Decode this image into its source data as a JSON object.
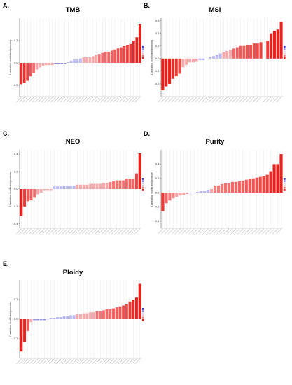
{
  "colors": {
    "strong_red": "#e8201c",
    "light_red": "#f7a8aa",
    "light_blue": "#b9b7f2",
    "mid_blue": "#8f8ce6",
    "grid": "#e6e6e6"
  },
  "chart_data": [
    {
      "panel": "A.",
      "title": "TMB",
      "type": "bar",
      "ylabel": "Correlation coefficient(pearson)",
      "ylim": [
        -0.3,
        0.4
      ],
      "yticks": [
        -0.2,
        0.0,
        0.2
      ],
      "values": [
        -0.19,
        -0.18,
        -0.16,
        -0.12,
        -0.09,
        -0.06,
        -0.04,
        -0.03,
        -0.02,
        -0.02,
        -0.02,
        -0.01,
        -0.01,
        -0.01,
        -0.01,
        0.01,
        0.02,
        0.03,
        0.03,
        0.04,
        0.05,
        0.05,
        0.05,
        0.06,
        0.07,
        0.08,
        0.09,
        0.1,
        0.1,
        0.11,
        0.12,
        0.13,
        0.14,
        0.15,
        0.16,
        0.17,
        0.2,
        0.23,
        0.35
      ]
    },
    {
      "panel": "B.",
      "title": "MSI",
      "type": "bar",
      "ylabel": "Correlation coefficient(pearson)",
      "ylim": [
        -0.3,
        0.32
      ],
      "yticks": [
        -0.2,
        -0.1,
        0.0,
        0.1,
        0.2,
        0.3
      ],
      "values": [
        -0.25,
        -0.22,
        -0.2,
        -0.16,
        -0.14,
        -0.12,
        -0.07,
        -0.05,
        -0.03,
        -0.03,
        -0.02,
        -0.01,
        -0.01,
        0.0,
        0.01,
        0.02,
        0.03,
        0.04,
        0.05,
        0.06,
        0.07,
        0.08,
        0.09,
        0.1,
        0.1,
        0.11,
        0.11,
        0.12,
        0.12,
        0.13,
        null,
        0.14,
        0.2,
        0.22,
        0.23,
        0.29
      ]
    },
    {
      "panel": "C.",
      "title": "NEO",
      "type": "bar",
      "ylabel": "Correlation coefficient(pearson)",
      "ylim": [
        -0.45,
        0.45
      ],
      "yticks": [
        -0.4,
        -0.2,
        0.0,
        0.2,
        0.4
      ],
      "values": [
        -0.31,
        -0.2,
        -0.14,
        -0.13,
        -0.1,
        -0.06,
        -0.04,
        -0.02,
        -0.02,
        -0.02,
        0.03,
        0.03,
        0.03,
        0.04,
        0.04,
        0.04,
        0.04,
        0.05,
        0.05,
        0.05,
        0.05,
        0.06,
        0.06,
        0.06,
        0.06,
        0.07,
        0.07,
        0.08,
        0.09,
        0.1,
        0.1,
        0.1,
        0.12,
        0.12,
        0.12,
        0.18,
        0.41
      ]
    },
    {
      "panel": "D.",
      "title": "Purity",
      "type": "bar",
      "ylabel": "Correlation coefficient(pearson)",
      "ylim": [
        -0.5,
        0.6
      ],
      "yticks": [
        -0.4,
        -0.2,
        0.0,
        0.2,
        0.4
      ],
      "values": [
        -0.26,
        -0.15,
        -0.11,
        -0.08,
        -0.06,
        -0.04,
        -0.03,
        -0.02,
        -0.01,
        0.0,
        0.01,
        0.02,
        0.02,
        0.03,
        0.05,
        0.1,
        0.1,
        0.12,
        0.13,
        0.13,
        0.15,
        0.15,
        0.16,
        0.17,
        0.18,
        0.19,
        0.2,
        0.21,
        0.22,
        0.23,
        0.25,
        0.3,
        0.4,
        0.4,
        0.54
      ]
    },
    {
      "panel": "E.",
      "title": "Ploidy",
      "type": "bar",
      "ylabel": "Correlation coefficient(pearson)",
      "ylim": [
        -0.4,
        0.4
      ],
      "yticks": [
        -0.2,
        0.0,
        0.2
      ],
      "values": [
        -0.33,
        -0.23,
        -0.12,
        -0.03,
        -0.01,
        -0.01,
        -0.01,
        -0.01,
        0.0,
        0.01,
        0.01,
        0.02,
        0.02,
        0.03,
        0.03,
        0.04,
        0.04,
        0.05,
        0.05,
        0.06,
        0.06,
        0.07,
        0.07,
        0.08,
        0.08,
        0.09,
        0.1,
        0.1,
        0.11,
        0.12,
        0.13,
        0.14,
        0.15,
        0.18,
        0.2,
        0.22,
        0.36
      ]
    }
  ]
}
